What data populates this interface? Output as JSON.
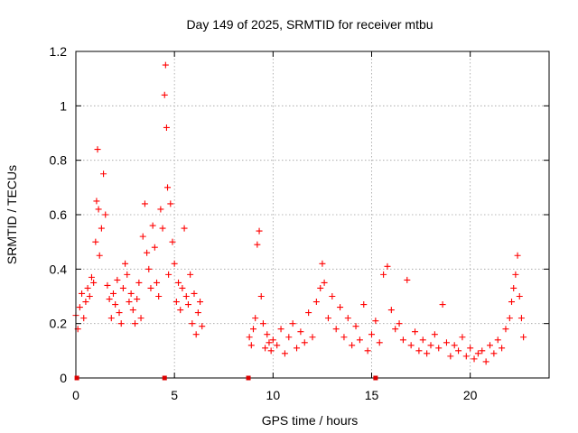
{
  "chart_data": {
    "type": "scatter",
    "title": "Day 149 of 2025, SRMTID for receiver mtbu",
    "xlabel": "GPS time / hours",
    "ylabel": "SRMTID / TECUs",
    "xlim": [
      0,
      24
    ],
    "ylim": [
      0,
      1.2
    ],
    "x_ticks": [
      0,
      5,
      10,
      15,
      20
    ],
    "x_tick_labels": [
      "0",
      "5",
      "10",
      "15",
      "20"
    ],
    "y_ticks": [
      0,
      0.2,
      0.4,
      0.6,
      0.8,
      1.0,
      1.2
    ],
    "y_tick_labels": [
      "0",
      "0.2",
      "0.4",
      "0.6",
      "0.8",
      "1",
      "1.2"
    ],
    "grid": true,
    "marker": "+",
    "color": "#ff0000",
    "data_gap_markers_x": [
      0.05,
      4.5,
      8.75,
      15.2
    ],
    "series": [
      {
        "name": "SRMTID",
        "x": [
          0.0,
          0.1,
          0.2,
          0.3,
          0.4,
          0.5,
          0.6,
          0.7,
          0.8,
          0.9,
          1.0,
          1.05,
          1.1,
          1.15,
          1.2,
          1.3,
          1.4,
          1.5,
          1.6,
          1.7,
          1.8,
          1.9,
          2.0,
          2.1,
          2.2,
          2.3,
          2.4,
          2.5,
          2.6,
          2.7,
          2.8,
          2.9,
          3.0,
          3.1,
          3.2,
          3.3,
          3.4,
          3.5,
          3.6,
          3.7,
          3.8,
          3.9,
          4.0,
          4.1,
          4.2,
          4.3,
          4.4,
          4.5,
          4.55,
          4.6,
          4.65,
          4.7,
          4.8,
          4.9,
          5.0,
          5.1,
          5.2,
          5.3,
          5.4,
          5.5,
          5.6,
          5.7,
          5.8,
          5.9,
          6.0,
          6.1,
          6.2,
          6.3,
          6.4,
          8.8,
          8.9,
          9.0,
          9.1,
          9.2,
          9.3,
          9.4,
          9.5,
          9.6,
          9.7,
          9.8,
          9.9,
          10.0,
          10.2,
          10.4,
          10.6,
          10.8,
          11.0,
          11.2,
          11.4,
          11.6,
          11.8,
          12.0,
          12.2,
          12.4,
          12.5,
          12.6,
          12.8,
          13.0,
          13.2,
          13.4,
          13.6,
          13.8,
          14.0,
          14.2,
          14.4,
          14.6,
          14.8,
          15.0,
          15.2,
          15.4,
          15.6,
          15.8,
          16.0,
          16.2,
          16.4,
          16.6,
          16.8,
          17.0,
          17.2,
          17.4,
          17.6,
          17.8,
          18.0,
          18.2,
          18.4,
          18.6,
          18.8,
          19.0,
          19.2,
          19.4,
          19.6,
          19.8,
          20.0,
          20.2,
          20.4,
          20.6,
          20.8,
          21.0,
          21.2,
          21.4,
          21.6,
          21.8,
          22.0,
          22.1,
          22.2,
          22.3,
          22.4,
          22.5,
          22.6,
          22.7
        ],
        "y": [
          0.23,
          0.18,
          0.26,
          0.31,
          0.22,
          0.28,
          0.33,
          0.3,
          0.37,
          0.35,
          0.5,
          0.65,
          0.84,
          0.62,
          0.45,
          0.55,
          0.75,
          0.6,
          0.34,
          0.29,
          0.22,
          0.31,
          0.27,
          0.36,
          0.24,
          0.2,
          0.33,
          0.42,
          0.38,
          0.28,
          0.31,
          0.25,
          0.2,
          0.29,
          0.35,
          0.22,
          0.52,
          0.64,
          0.46,
          0.4,
          0.33,
          0.56,
          0.48,
          0.35,
          0.3,
          0.62,
          0.55,
          1.04,
          1.15,
          0.92,
          0.7,
          0.38,
          0.64,
          0.5,
          0.42,
          0.28,
          0.35,
          0.25,
          0.33,
          0.55,
          0.3,
          0.27,
          0.38,
          0.2,
          0.31,
          0.16,
          0.24,
          0.28,
          0.19,
          0.15,
          0.12,
          0.18,
          0.22,
          0.49,
          0.54,
          0.3,
          0.2,
          0.11,
          0.16,
          0.13,
          0.1,
          0.14,
          0.12,
          0.18,
          0.09,
          0.15,
          0.2,
          0.11,
          0.17,
          0.13,
          0.24,
          0.15,
          0.28,
          0.33,
          0.42,
          0.35,
          0.22,
          0.3,
          0.18,
          0.26,
          0.15,
          0.22,
          0.12,
          0.19,
          0.14,
          0.27,
          0.1,
          0.16,
          0.21,
          0.13,
          0.38,
          0.41,
          0.25,
          0.18,
          0.2,
          0.14,
          0.36,
          0.12,
          0.17,
          0.1,
          0.14,
          0.09,
          0.12,
          0.16,
          0.11,
          0.27,
          0.13,
          0.08,
          0.12,
          0.1,
          0.15,
          0.08,
          0.11,
          0.07,
          0.09,
          0.1,
          0.06,
          0.12,
          0.09,
          0.14,
          0.11,
          0.18,
          0.22,
          0.28,
          0.33,
          0.38,
          0.45,
          0.3,
          0.22,
          0.15
        ]
      }
    ]
  }
}
